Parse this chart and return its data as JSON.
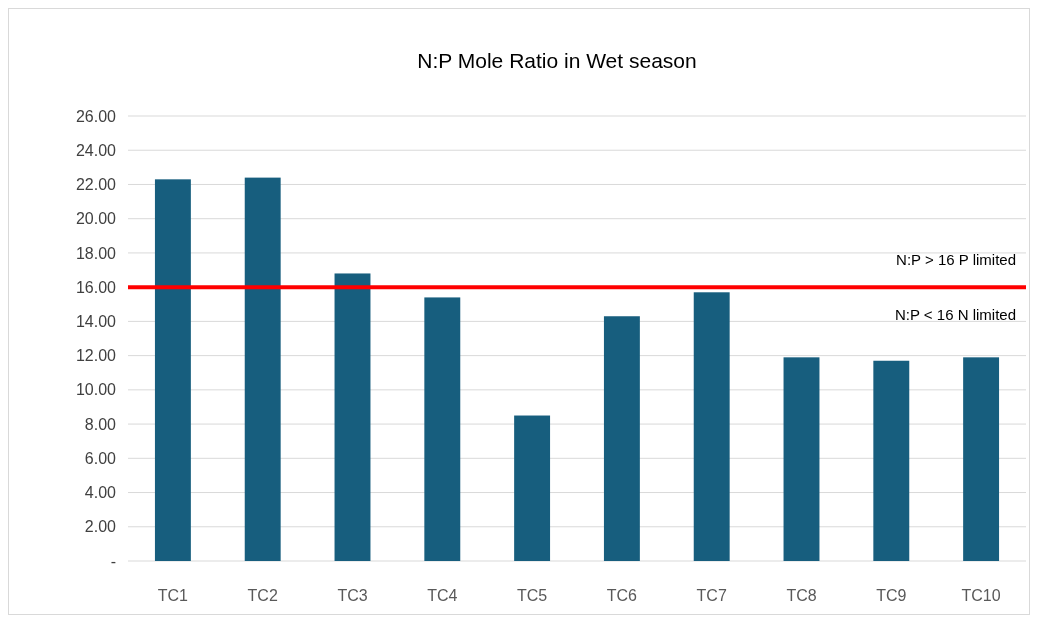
{
  "chart_data": {
    "type": "bar",
    "title": "N:P Mole Ratio in Wet season",
    "categories": [
      "TC1",
      "TC2",
      "TC3",
      "TC4",
      "TC5",
      "TC6",
      "TC7",
      "TC8",
      "TC9",
      "TC10"
    ],
    "values": [
      22.3,
      22.4,
      16.8,
      15.4,
      8.5,
      14.3,
      15.7,
      11.9,
      11.7,
      11.9
    ],
    "color": "#175e7e",
    "ylim": [
      0,
      26
    ],
    "yticks": [
      {
        "value": 0,
        "label": "-"
      },
      {
        "value": 2,
        "label": "2.00"
      },
      {
        "value": 4,
        "label": "4.00"
      },
      {
        "value": 6,
        "label": "6.00"
      },
      {
        "value": 8,
        "label": "8.00"
      },
      {
        "value": 10,
        "label": "10.00"
      },
      {
        "value": 12,
        "label": "12.00"
      },
      {
        "value": 14,
        "label": "14.00"
      },
      {
        "value": 16,
        "label": "16.00"
      },
      {
        "value": 18,
        "label": "18.00"
      },
      {
        "value": 20,
        "label": "20.00"
      },
      {
        "value": 22,
        "label": "22.00"
      },
      {
        "value": 24,
        "label": "24.00"
      },
      {
        "value": 26,
        "label": "26.00"
      }
    ],
    "grid": "y",
    "ref_lines": [
      {
        "axis": "y",
        "value": 16,
        "color": "#ff0000"
      }
    ],
    "annotations": [
      "N:P > 16 P limited",
      "N:P < 16 N limited"
    ]
  }
}
